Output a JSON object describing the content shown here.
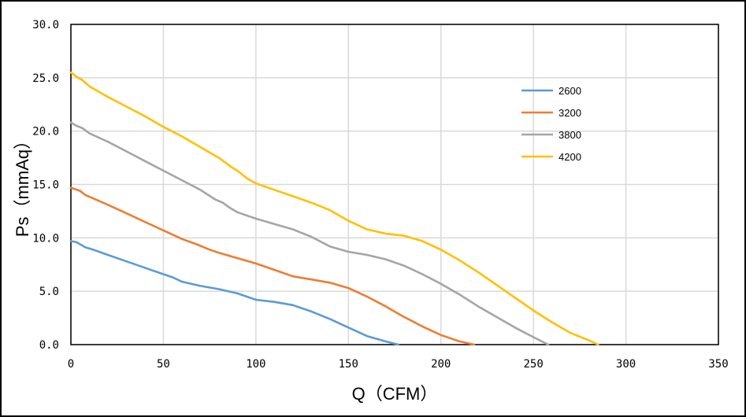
{
  "chart_data": {
    "type": "line",
    "xlabel": "Q（CFM）",
    "ylabel": "Ps（mmAq）",
    "xlim": [
      0,
      350
    ],
    "ylim": [
      0,
      30
    ],
    "x_ticks": [
      "0",
      "50",
      "100",
      "150",
      "200",
      "250",
      "300",
      "350"
    ],
    "y_ticks": [
      "0.0",
      "5.0",
      "10.0",
      "15.0",
      "20.0",
      "25.0",
      "30.0"
    ],
    "grid": true,
    "legend_position": "right",
    "series": [
      {
        "name": "2600",
        "color": "#5B9BD5",
        "points": [
          [
            0,
            9.7
          ],
          [
            3,
            9.6
          ],
          [
            5,
            9.4
          ],
          [
            8,
            9.1
          ],
          [
            12,
            8.9
          ],
          [
            20,
            8.4
          ],
          [
            30,
            7.8
          ],
          [
            40,
            7.2
          ],
          [
            50,
            6.6
          ],
          [
            55,
            6.3
          ],
          [
            60,
            5.9
          ],
          [
            70,
            5.5
          ],
          [
            80,
            5.2
          ],
          [
            90,
            4.8
          ],
          [
            100,
            4.2
          ],
          [
            110,
            4.0
          ],
          [
            120,
            3.7
          ],
          [
            130,
            3.1
          ],
          [
            140,
            2.4
          ],
          [
            150,
            1.6
          ],
          [
            160,
            0.8
          ],
          [
            170,
            0.3
          ],
          [
            177,
            0
          ]
        ]
      },
      {
        "name": "3200",
        "color": "#ED7D31",
        "points": [
          [
            0,
            14.7
          ],
          [
            5,
            14.4
          ],
          [
            8,
            14.0
          ],
          [
            12,
            13.7
          ],
          [
            20,
            13.1
          ],
          [
            30,
            12.3
          ],
          [
            40,
            11.5
          ],
          [
            50,
            10.7
          ],
          [
            60,
            9.9
          ],
          [
            68,
            9.4
          ],
          [
            75,
            8.9
          ],
          [
            80,
            8.6
          ],
          [
            90,
            8.1
          ],
          [
            100,
            7.6
          ],
          [
            110,
            7.0
          ],
          [
            120,
            6.4
          ],
          [
            130,
            6.1
          ],
          [
            140,
            5.8
          ],
          [
            150,
            5.3
          ],
          [
            160,
            4.5
          ],
          [
            170,
            3.6
          ],
          [
            180,
            2.6
          ],
          [
            190,
            1.7
          ],
          [
            200,
            0.9
          ],
          [
            210,
            0.3
          ],
          [
            218,
            0
          ]
        ]
      },
      {
        "name": "3800",
        "color": "#A5A5A5",
        "points": [
          [
            0,
            20.8
          ],
          [
            3,
            20.5
          ],
          [
            6,
            20.3
          ],
          [
            10,
            19.8
          ],
          [
            15,
            19.4
          ],
          [
            20,
            19.0
          ],
          [
            30,
            18.1
          ],
          [
            40,
            17.2
          ],
          [
            50,
            16.3
          ],
          [
            60,
            15.4
          ],
          [
            70,
            14.5
          ],
          [
            78,
            13.6
          ],
          [
            82,
            13.3
          ],
          [
            86,
            12.8
          ],
          [
            90,
            12.4
          ],
          [
            100,
            11.8
          ],
          [
            110,
            11.3
          ],
          [
            120,
            10.8
          ],
          [
            130,
            10.1
          ],
          [
            140,
            9.2
          ],
          [
            150,
            8.7
          ],
          [
            160,
            8.4
          ],
          [
            170,
            8.0
          ],
          [
            180,
            7.4
          ],
          [
            190,
            6.6
          ],
          [
            200,
            5.7
          ],
          [
            210,
            4.7
          ],
          [
            220,
            3.6
          ],
          [
            230,
            2.6
          ],
          [
            240,
            1.6
          ],
          [
            250,
            0.7
          ],
          [
            258,
            0
          ]
        ]
      },
      {
        "name": "4200",
        "color": "#FFC000",
        "points": [
          [
            0,
            25.5
          ],
          [
            3,
            25.1
          ],
          [
            6,
            24.8
          ],
          [
            10,
            24.2
          ],
          [
            15,
            23.7
          ],
          [
            20,
            23.2
          ],
          [
            30,
            22.3
          ],
          [
            40,
            21.4
          ],
          [
            50,
            20.4
          ],
          [
            60,
            19.5
          ],
          [
            70,
            18.5
          ],
          [
            80,
            17.5
          ],
          [
            87,
            16.6
          ],
          [
            90,
            16.3
          ],
          [
            95,
            15.6
          ],
          [
            100,
            15.1
          ],
          [
            110,
            14.5
          ],
          [
            120,
            13.9
          ],
          [
            130,
            13.3
          ],
          [
            140,
            12.6
          ],
          [
            150,
            11.6
          ],
          [
            160,
            10.8
          ],
          [
            170,
            10.4
          ],
          [
            180,
            10.2
          ],
          [
            190,
            9.7
          ],
          [
            200,
            8.9
          ],
          [
            210,
            7.9
          ],
          [
            220,
            6.8
          ],
          [
            230,
            5.6
          ],
          [
            240,
            4.4
          ],
          [
            250,
            3.2
          ],
          [
            260,
            2.1
          ],
          [
            270,
            1.1
          ],
          [
            280,
            0.4
          ],
          [
            285,
            0
          ]
        ]
      }
    ]
  }
}
